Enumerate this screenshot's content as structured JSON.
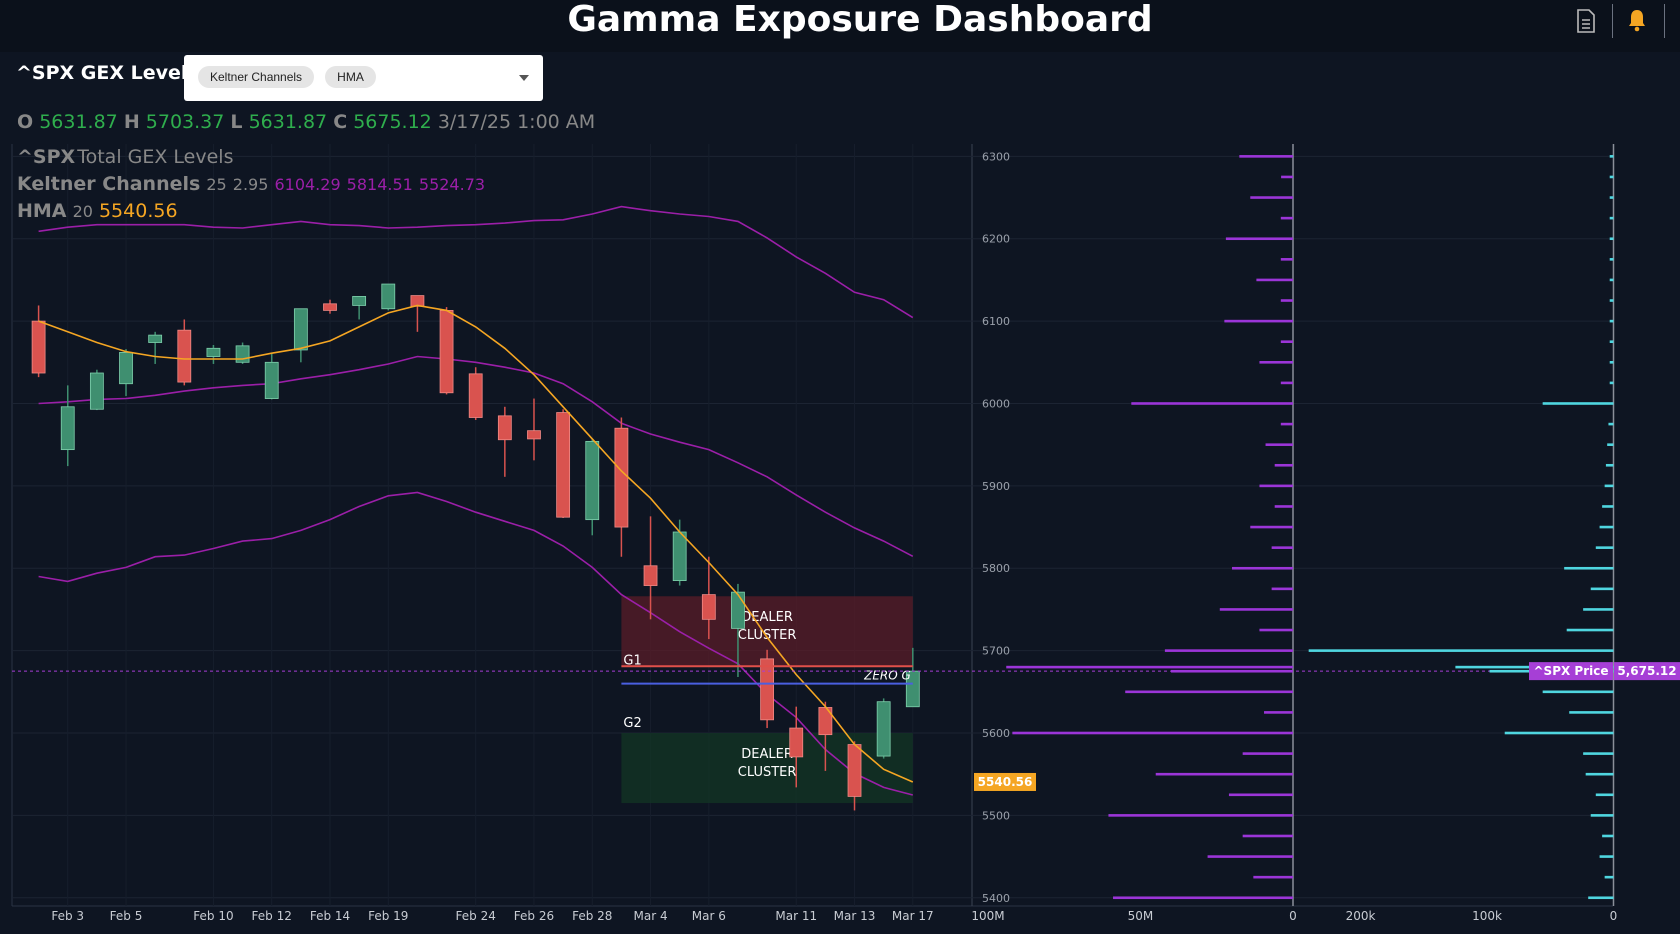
{
  "header": {
    "title": "Gamma Exposure Dashboard"
  },
  "toolbar": {
    "symbol_label": "^SPX GEX Levels",
    "indicators": [
      "Keltner Channels",
      "HMA"
    ]
  },
  "chart_data": [
    {
      "type": "candlestick",
      "symbol": "^SPX",
      "title": "Total GEX Levels",
      "ohlc_labels": [
        "O",
        "H",
        "L",
        "C"
      ],
      "timestamp": "3/17/25 1:00 AM",
      "categories": [
        null,
        "Feb 3",
        null,
        "Feb 5",
        null,
        null,
        "Feb 10",
        null,
        "Feb 12",
        null,
        "Feb 14",
        null,
        "Feb 19",
        null,
        null,
        "Feb 24",
        null,
        "Feb 26",
        null,
        "Feb 28",
        null,
        "Mar 4",
        null,
        "Mar 6",
        null,
        null,
        "Mar 11",
        null,
        "Mar 13",
        null,
        "Mar 17"
      ],
      "open": [
        6100,
        5944,
        5993,
        6024,
        6074,
        6089,
        6057,
        6050,
        6006,
        6065,
        6121,
        6119,
        6115,
        6131,
        6113,
        6036,
        5985,
        5967,
        5989,
        5859,
        5970,
        5803,
        5785,
        5768,
        5727,
        5690,
        5606,
        5631,
        5586,
        5572,
        5631.87
      ],
      "high": [
        6119,
        6022,
        6041,
        6066,
        6087,
        6102,
        6071,
        6074,
        6061,
        6115,
        6126,
        6130,
        6145,
        6131,
        6117,
        6044,
        5996,
        6006,
        5993,
        5957,
        5983,
        5863,
        5859,
        5814,
        5781,
        5701,
        5632,
        5638,
        5590,
        5642,
        5703.37
      ],
      "low": [
        6032,
        5924,
        5992,
        6009,
        6048,
        6022,
        6048,
        6048,
        6005,
        6050,
        6109,
        6102,
        6113,
        6087,
        6011,
        5980,
        5911,
        5931,
        5861,
        5840,
        5814,
        5738,
        5779,
        5714,
        5668,
        5606,
        5534,
        5554,
        5506,
        5569,
        5631.87
      ],
      "close": [
        6037,
        5996,
        6037,
        6062,
        6083,
        6026,
        6067,
        6070,
        6050,
        6115,
        6113,
        6130,
        6145,
        6118,
        6013,
        5983,
        5956,
        5957,
        5862,
        5954,
        5850,
        5779,
        5844,
        5738,
        5771,
        5616,
        5571,
        5598,
        5523,
        5638,
        5675.12
      ],
      "up_color": "#3f8f70",
      "down_color": "#d9534f",
      "ylim": [
        5390,
        6315
      ],
      "yticks": [
        5400,
        5500,
        5600,
        5700,
        5800,
        5900,
        6000,
        6100,
        6200,
        6300
      ],
      "keltner": {
        "name": "Keltner Channels",
        "params": [
          25,
          2.95
        ],
        "color": "#9b1fa8",
        "upper": [
          6209,
          6214,
          6217,
          6217,
          6217,
          6217,
          6214,
          6213,
          6217,
          6221,
          6217,
          6216,
          6213,
          6214,
          6216,
          6217,
          6219,
          6222,
          6223,
          6230,
          6239,
          6234,
          6230,
          6227,
          6221,
          6201,
          6178,
          6158,
          6135,
          6126,
          6104.29
        ],
        "middle": [
          6000,
          6002,
          6005,
          6006,
          6010,
          6015,
          6019,
          6022,
          6024,
          6030,
          6035,
          6041,
          6048,
          6057,
          6054,
          6050,
          6044,
          6037,
          6024,
          6002,
          5976,
          5963,
          5953,
          5944,
          5928,
          5911,
          5889,
          5868,
          5849,
          5833,
          5814.51
        ],
        "lower": [
          5790,
          5784,
          5794,
          5801,
          5814,
          5816,
          5824,
          5833,
          5836,
          5846,
          5859,
          5875,
          5888,
          5892,
          5881,
          5868,
          5857,
          5846,
          5827,
          5801,
          5768,
          5746,
          5723,
          5703,
          5684,
          5647,
          5619,
          5580,
          5551,
          5534,
          5524.73
        ]
      },
      "hma": {
        "name": "HMA",
        "params": [
          20
        ],
        "color": "#f5a623",
        "values": [
          6100,
          6087,
          6074,
          6063,
          6057,
          6054,
          6054,
          6054,
          6061,
          6067,
          6076,
          6093,
          6110,
          6119,
          6113,
          6093,
          6067,
          6035,
          5996,
          5957,
          5918,
          5885,
          5844,
          5807,
          5768,
          5716,
          5671,
          5632,
          5586,
          5556,
          5540.56
        ]
      },
      "price_line": {
        "name": "^SPX Price",
        "value": 5675.12,
        "value_label": "5,675.12",
        "color": "#a63fd6"
      },
      "zones": [
        {
          "label": "DEALER CLUSTER",
          "from": 5681,
          "to": 5766,
          "color": "#5a1c28"
        },
        {
          "label": "DEALER CLUSTER",
          "from": 5515,
          "to": 5600,
          "color": "#133624"
        }
      ],
      "levels": [
        {
          "label": "G1",
          "value": 5681,
          "color": "#e0504a"
        },
        {
          "label": "ZERO G",
          "value": 5660,
          "color": "#4a5fe0"
        },
        {
          "label": "G2",
          "value": 5612
        }
      ]
    },
    {
      "type": "hbar",
      "y": [
        6300,
        6275,
        6250,
        6225,
        6200,
        6175,
        6150,
        6125,
        6100,
        6075,
        6050,
        6025,
        6000,
        5975,
        5950,
        5925,
        5900,
        5875,
        5850,
        5825,
        5800,
        5775,
        5750,
        5725,
        5700,
        5680,
        5675,
        5650,
        5625,
        5600,
        5575,
        5550,
        5525,
        5500,
        5475,
        5450,
        5425,
        5400
      ],
      "values": [
        17.6,
        3.9,
        14,
        4,
        22,
        4,
        12,
        4,
        22.5,
        4,
        11,
        4,
        53,
        4,
        9,
        6,
        11,
        6,
        14,
        7,
        20,
        7,
        24,
        11,
        42,
        94,
        40,
        55,
        9.5,
        92,
        16.5,
        45,
        21,
        60.5,
        16.5,
        28,
        13,
        59
      ],
      "color": "#9b35d8",
      "xlim": [
        105,
        0
      ],
      "xticks": [
        {
          "value": 100,
          "label": "100M"
        },
        {
          "value": 50,
          "label": "50M"
        },
        0
      ],
      "ylim": [
        5390,
        6315
      ]
    },
    {
      "type": "hbar",
      "y": [
        6300,
        6275,
        6250,
        6225,
        6200,
        6175,
        6150,
        6125,
        6100,
        6075,
        6050,
        6025,
        6000,
        5975,
        5950,
        5925,
        5900,
        5875,
        5850,
        5825,
        5800,
        5775,
        5750,
        5725,
        5700,
        5680,
        5675,
        5650,
        5625,
        5600,
        5575,
        5550,
        5525,
        5500,
        5475,
        5450,
        5425,
        5400
      ],
      "values": [
        3,
        3,
        3,
        3,
        3,
        3,
        3,
        3,
        3,
        3,
        3,
        3,
        56,
        4,
        5,
        6,
        7,
        9,
        11,
        14,
        39,
        18,
        24,
        37,
        241,
        125,
        98,
        56,
        35,
        86,
        24,
        22,
        14,
        18,
        9,
        11,
        7,
        20
      ],
      "color": "#4fd6e0",
      "xlim": [
        253,
        0
      ],
      "xticks": [
        {
          "value": 200,
          "label": "200k"
        },
        {
          "value": 100,
          "label": "100k"
        },
        0
      ],
      "ylim": [
        5390,
        6315
      ]
    }
  ]
}
